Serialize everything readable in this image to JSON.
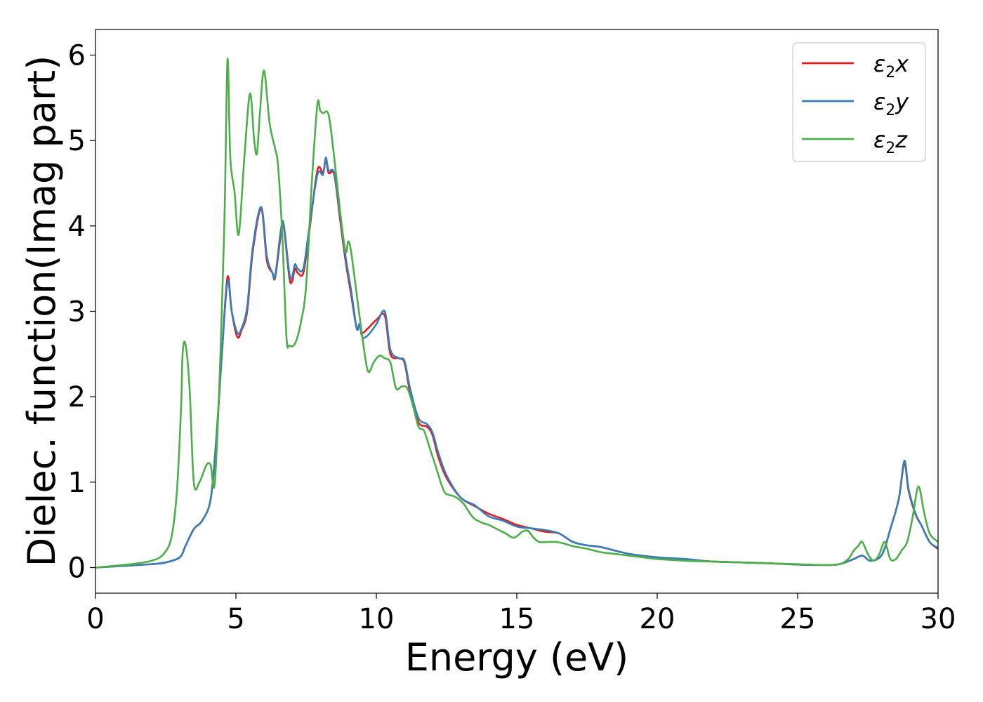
{
  "chart_data": {
    "type": "line",
    "title": "",
    "xlabel": "Energy (eV)",
    "ylabel": "Dielec. function(Imag part)",
    "xlim": [
      0,
      30
    ],
    "ylim": [
      -0.3,
      6.3
    ],
    "xticks": [
      0,
      5,
      10,
      15,
      20,
      25,
      30
    ],
    "yticks": [
      0,
      1,
      2,
      3,
      4,
      5,
      6
    ],
    "grid": false,
    "legend_position": "top-right",
    "series": [
      {
        "name": "ε2x",
        "legend": {
          "base": "ε",
          "sub": "2",
          "var": "x"
        },
        "color": "#e41a1c",
        "x": [
          0,
          1,
          2,
          2.5,
          3,
          3.2,
          3.5,
          3.8,
          4.1,
          4.3,
          4.5,
          4.7,
          4.85,
          5.05,
          5.2,
          5.4,
          5.6,
          5.9,
          6.1,
          6.3,
          6.4,
          6.6,
          6.7,
          6.9,
          7.0,
          7.1,
          7.2,
          7.4,
          7.6,
          7.9,
          8.1,
          8.2,
          8.3,
          8.5,
          8.7,
          8.9,
          9.1,
          9.3,
          9.4,
          9.5,
          9.7,
          10.0,
          10.3,
          10.5,
          10.8,
          11.0,
          11.2,
          11.5,
          11.8,
          12.0,
          12.2,
          12.5,
          13.0,
          13.5,
          14.0,
          14.5,
          15.0,
          15.5,
          16.0,
          16.5,
          17.0,
          17.5,
          18.0,
          19.0,
          20.0,
          21.0,
          22.0,
          23.0,
          24.0,
          25.0,
          26.0,
          26.5,
          27.0,
          27.3,
          27.6,
          28.0,
          28.3,
          28.6,
          28.8,
          28.95,
          29.2,
          29.4,
          29.7,
          30.0
        ],
        "values": [
          0,
          0.02,
          0.04,
          0.06,
          0.12,
          0.25,
          0.45,
          0.55,
          0.8,
          1.5,
          2.5,
          3.4,
          3.0,
          2.7,
          2.78,
          3.0,
          3.7,
          4.2,
          3.6,
          3.45,
          3.4,
          3.9,
          4.0,
          3.4,
          3.35,
          3.5,
          3.45,
          3.45,
          3.9,
          4.65,
          4.62,
          4.78,
          4.62,
          4.6,
          4.1,
          3.6,
          3.2,
          2.8,
          2.85,
          2.75,
          2.8,
          2.9,
          2.95,
          2.5,
          2.45,
          2.4,
          2.05,
          1.7,
          1.65,
          1.55,
          1.3,
          1.05,
          0.82,
          0.72,
          0.63,
          0.57,
          0.5,
          0.46,
          0.42,
          0.4,
          0.3,
          0.26,
          0.24,
          0.16,
          0.12,
          0.09,
          0.07,
          0.06,
          0.05,
          0.035,
          0.03,
          0.04,
          0.1,
          0.14,
          0.08,
          0.15,
          0.45,
          0.8,
          1.22,
          0.9,
          0.62,
          0.5,
          0.3,
          0.22
        ]
      },
      {
        "name": "ε2y",
        "legend": {
          "base": "ε",
          "sub": "2",
          "var": "y"
        },
        "color": "#377eb8",
        "x": [
          0,
          1,
          2,
          2.5,
          3,
          3.2,
          3.5,
          3.8,
          4.1,
          4.3,
          4.5,
          4.7,
          4.85,
          5.05,
          5.2,
          5.4,
          5.6,
          5.9,
          6.1,
          6.3,
          6.4,
          6.6,
          6.7,
          6.9,
          7.0,
          7.1,
          7.2,
          7.4,
          7.6,
          7.9,
          8.1,
          8.2,
          8.3,
          8.5,
          8.7,
          8.9,
          9.1,
          9.3,
          9.4,
          9.5,
          9.7,
          10.0,
          10.3,
          10.5,
          10.8,
          11.0,
          11.2,
          11.5,
          11.8,
          12.0,
          12.2,
          12.5,
          13.0,
          13.5,
          14.0,
          14.5,
          15.0,
          15.5,
          16.0,
          16.5,
          17.0,
          17.5,
          18.0,
          19.0,
          20.0,
          21.0,
          22.0,
          23.0,
          24.0,
          25.0,
          26.0,
          26.5,
          27.0,
          27.3,
          27.6,
          28.0,
          28.3,
          28.6,
          28.8,
          28.95,
          29.2,
          29.4,
          29.7,
          30.0
        ],
        "values": [
          0,
          0.02,
          0.04,
          0.06,
          0.12,
          0.25,
          0.45,
          0.55,
          0.8,
          1.5,
          2.5,
          3.35,
          3.0,
          2.75,
          2.8,
          3.05,
          3.75,
          4.22,
          3.65,
          3.45,
          3.42,
          3.95,
          4.02,
          3.45,
          3.4,
          3.55,
          3.5,
          3.5,
          3.95,
          4.6,
          4.6,
          4.8,
          4.65,
          4.62,
          4.15,
          3.65,
          3.25,
          2.8,
          2.85,
          2.7,
          2.72,
          2.85,
          3.0,
          2.55,
          2.45,
          2.42,
          2.1,
          1.75,
          1.68,
          1.58,
          1.35,
          1.08,
          0.82,
          0.73,
          0.6,
          0.55,
          0.48,
          0.46,
          0.44,
          0.4,
          0.3,
          0.26,
          0.24,
          0.16,
          0.12,
          0.1,
          0.07,
          0.06,
          0.05,
          0.035,
          0.03,
          0.04,
          0.1,
          0.14,
          0.08,
          0.15,
          0.45,
          0.8,
          1.25,
          0.92,
          0.63,
          0.5,
          0.3,
          0.23
        ]
      },
      {
        "name": "ε2z",
        "legend": {
          "base": "ε",
          "sub": "2",
          "var": "z"
        },
        "color": "#4daf4a",
        "x": [
          0,
          1,
          1.5,
          2,
          2.4,
          2.7,
          2.9,
          3.05,
          3.1,
          3.2,
          3.35,
          3.5,
          3.7,
          3.95,
          4.1,
          4.25,
          4.45,
          4.6,
          4.7,
          4.8,
          4.95,
          5.1,
          5.3,
          5.5,
          5.65,
          5.75,
          5.85,
          6.0,
          6.2,
          6.4,
          6.5,
          6.65,
          6.8,
          6.9,
          7.1,
          7.3,
          7.5,
          7.7,
          7.9,
          8.0,
          8.1,
          8.3,
          8.5,
          8.7,
          8.9,
          9.0,
          9.1,
          9.3,
          9.5,
          9.7,
          9.9,
          10.1,
          10.3,
          10.5,
          10.7,
          10.9,
          11.1,
          11.3,
          11.5,
          11.7,
          11.9,
          12.1,
          12.4,
          12.6,
          12.8,
          13.1,
          13.3,
          13.5,
          13.8,
          14.0,
          14.3,
          14.6,
          14.9,
          15.2,
          15.4,
          15.6,
          15.8,
          16.1,
          16.4,
          16.7,
          17.0,
          17.5,
          18.0,
          18.5,
          19.0,
          19.5,
          20.0,
          21.0,
          22.0,
          23.0,
          24.0,
          25.0,
          26.0,
          26.5,
          26.8,
          27.0,
          27.15,
          27.3,
          27.5,
          27.7,
          27.9,
          28.1,
          28.3,
          28.5,
          28.7,
          28.9,
          29.1,
          29.3,
          29.5,
          29.7,
          30.0
        ],
        "values": [
          0,
          0.03,
          0.05,
          0.08,
          0.15,
          0.35,
          0.9,
          1.9,
          2.5,
          2.62,
          2.1,
          1.0,
          1.0,
          1.2,
          1.2,
          1.0,
          2.5,
          4.2,
          5.95,
          4.8,
          4.4,
          3.9,
          4.8,
          5.55,
          5.0,
          4.85,
          5.3,
          5.82,
          5.2,
          4.9,
          4.7,
          3.9,
          2.7,
          2.6,
          2.62,
          2.85,
          3.3,
          4.5,
          5.42,
          5.35,
          5.32,
          5.3,
          4.8,
          4.2,
          3.7,
          3.82,
          3.7,
          3.2,
          2.7,
          2.3,
          2.4,
          2.48,
          2.45,
          2.4,
          2.1,
          2.12,
          2.1,
          1.9,
          1.65,
          1.6,
          1.4,
          1.2,
          0.9,
          0.85,
          0.83,
          0.75,
          0.65,
          0.57,
          0.52,
          0.5,
          0.45,
          0.4,
          0.35,
          0.42,
          0.43,
          0.35,
          0.3,
          0.3,
          0.3,
          0.28,
          0.25,
          0.22,
          0.18,
          0.16,
          0.14,
          0.12,
          0.1,
          0.08,
          0.07,
          0.06,
          0.05,
          0.04,
          0.03,
          0.04,
          0.1,
          0.2,
          0.25,
          0.3,
          0.16,
          0.08,
          0.15,
          0.3,
          0.1,
          0.1,
          0.2,
          0.3,
          0.6,
          0.95,
          0.65,
          0.4,
          0.3
        ],
        "_note_ignore": ""
      }
    ]
  }
}
